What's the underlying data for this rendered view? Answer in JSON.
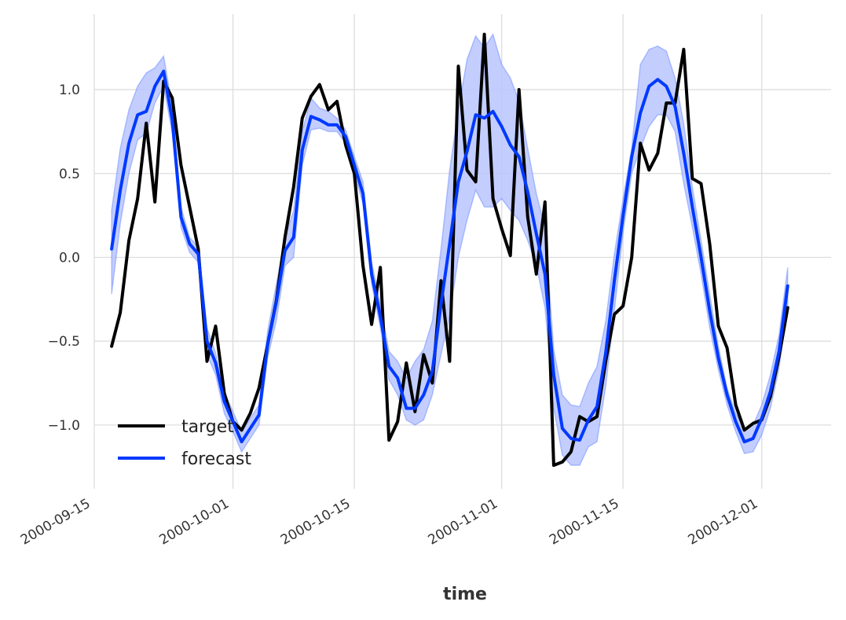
{
  "chart_data": {
    "type": "line",
    "title": "",
    "xlabel": "time",
    "ylabel": "",
    "x_axis_type": "date",
    "xlim": [
      "2000-09-15",
      "2000-12-09"
    ],
    "ylim": [
      -1.38,
      1.45
    ],
    "grid": true,
    "legend_position": "lower-left",
    "x_ticks": [
      "2000-09-15",
      "2000-10-01",
      "2000-10-15",
      "2000-11-01",
      "2000-11-15",
      "2000-12-01"
    ],
    "y_ticks": [
      {
        "value": 1.0,
        "label": "1.0"
      },
      {
        "value": 0.5,
        "label": "0.5"
      },
      {
        "value": 0.0,
        "label": "0.0"
      },
      {
        "value": -0.5,
        "label": "−0.5"
      },
      {
        "value": -1.0,
        "label": "−1.0"
      }
    ],
    "x": [
      "2000-09-17",
      "2000-09-18",
      "2000-09-19",
      "2000-09-20",
      "2000-09-21",
      "2000-09-22",
      "2000-09-23",
      "2000-09-24",
      "2000-09-25",
      "2000-09-26",
      "2000-09-27",
      "2000-09-28",
      "2000-09-29",
      "2000-09-30",
      "2000-10-01",
      "2000-10-02",
      "2000-10-03",
      "2000-10-04",
      "2000-10-05",
      "2000-10-06",
      "2000-10-07",
      "2000-10-08",
      "2000-10-09",
      "2000-10-10",
      "2000-10-11",
      "2000-10-12",
      "2000-10-13",
      "2000-10-14",
      "2000-10-15",
      "2000-10-16",
      "2000-10-17",
      "2000-10-18",
      "2000-10-19",
      "2000-10-20",
      "2000-10-21",
      "2000-10-22",
      "2000-10-23",
      "2000-10-24",
      "2000-10-25",
      "2000-10-26",
      "2000-10-27",
      "2000-10-28",
      "2000-10-29",
      "2000-10-30",
      "2000-10-31",
      "2000-11-01",
      "2000-11-02",
      "2000-11-03",
      "2000-11-04",
      "2000-11-05",
      "2000-11-06",
      "2000-11-07",
      "2000-11-08",
      "2000-11-09",
      "2000-11-10",
      "2000-11-11",
      "2000-11-12",
      "2000-11-13",
      "2000-11-14",
      "2000-11-15",
      "2000-11-16",
      "2000-11-17",
      "2000-11-18",
      "2000-11-19",
      "2000-11-20",
      "2000-11-21",
      "2000-11-22",
      "2000-11-23",
      "2000-11-24",
      "2000-11-25",
      "2000-11-26",
      "2000-11-27",
      "2000-11-28",
      "2000-11-29",
      "2000-11-30",
      "2000-12-01",
      "2000-12-02",
      "2000-12-03",
      "2000-12-04"
    ],
    "series": [
      {
        "name": "target",
        "color": "#000000",
        "values": [
          -0.53,
          -0.33,
          0.1,
          0.35,
          0.8,
          0.33,
          1.05,
          0.95,
          0.55,
          0.3,
          0.05,
          -0.62,
          -0.41,
          -0.81,
          -0.98,
          -1.03,
          -0.93,
          -0.78,
          -0.52,
          -0.26,
          0.12,
          0.42,
          0.83,
          0.96,
          1.03,
          0.88,
          0.93,
          0.67,
          0.5,
          -0.05,
          -0.4,
          -0.06,
          -1.09,
          -0.98,
          -0.63,
          -0.92,
          -0.58,
          -0.75,
          -0.14,
          -0.62,
          1.14,
          0.52,
          0.45,
          1.33,
          0.35,
          0.17,
          0.01,
          1.0,
          0.24,
          -0.1,
          0.33,
          -1.24,
          -1.22,
          -1.16,
          -0.95,
          -0.98,
          -0.95,
          -0.62,
          -0.34,
          -0.29,
          0.0,
          0.68,
          0.52,
          0.62,
          0.92,
          0.92,
          1.24,
          0.47,
          0.44,
          0.08,
          -0.41,
          -0.54,
          -0.88,
          -1.03,
          -0.99,
          -0.97,
          -0.83,
          -0.59,
          -0.3
        ]
      },
      {
        "name": "forecast",
        "color": "#0039FF",
        "band_color": "#B9C6FF",
        "values": [
          0.05,
          0.4,
          0.68,
          0.85,
          0.87,
          1.02,
          1.11,
          0.82,
          0.24,
          0.08,
          0.02,
          -0.5,
          -0.63,
          -0.86,
          -0.98,
          -1.1,
          -1.02,
          -0.94,
          -0.52,
          -0.27,
          0.04,
          0.12,
          0.64,
          0.84,
          0.82,
          0.79,
          0.79,
          0.72,
          0.55,
          0.38,
          -0.1,
          -0.35,
          -0.65,
          -0.72,
          -0.9,
          -0.9,
          -0.82,
          -0.68,
          -0.28,
          0.08,
          0.45,
          0.63,
          0.85,
          0.83,
          0.87,
          0.78,
          0.67,
          0.6,
          0.39,
          0.14,
          -0.1,
          -0.7,
          -1.02,
          -1.08,
          -1.09,
          -0.97,
          -0.89,
          -0.57,
          -0.14,
          0.25,
          0.6,
          0.86,
          1.02,
          1.06,
          1.02,
          0.9,
          0.62,
          0.3,
          0.0,
          -0.32,
          -0.6,
          -0.82,
          -0.98,
          -1.1,
          -1.08,
          -0.96,
          -0.8,
          -0.56,
          -0.17
        ],
        "upper": [
          0.28,
          0.65,
          0.88,
          1.02,
          1.1,
          1.13,
          1.2,
          0.9,
          0.3,
          0.12,
          0.06,
          -0.42,
          -0.57,
          -0.8,
          -0.92,
          -1.04,
          -0.96,
          -0.88,
          -0.44,
          -0.16,
          0.12,
          0.28,
          0.75,
          0.95,
          0.89,
          0.87,
          0.83,
          0.76,
          0.6,
          0.45,
          -0.03,
          -0.28,
          -0.56,
          -0.62,
          -0.72,
          -0.62,
          -0.55,
          -0.38,
          0.05,
          0.52,
          0.88,
          1.18,
          1.32,
          1.25,
          1.33,
          1.15,
          1.07,
          0.93,
          0.65,
          0.38,
          0.18,
          -0.55,
          -0.82,
          -0.88,
          -0.89,
          -0.75,
          -0.65,
          -0.38,
          0.02,
          0.35,
          0.65,
          1.15,
          1.24,
          1.26,
          1.23,
          1.07,
          0.8,
          0.42,
          0.1,
          -0.22,
          -0.53,
          -0.78,
          -0.93,
          -1.02,
          -1.0,
          -0.88,
          -0.7,
          -0.46,
          -0.06
        ],
        "lower": [
          -0.22,
          0.2,
          0.5,
          0.7,
          0.74,
          0.92,
          1.02,
          0.74,
          0.18,
          0.03,
          -0.03,
          -0.58,
          -0.7,
          -0.93,
          -1.04,
          -1.16,
          -1.08,
          -1.0,
          -0.6,
          -0.38,
          -0.05,
          0.0,
          0.55,
          0.76,
          0.77,
          0.75,
          0.75,
          0.68,
          0.5,
          0.32,
          -0.16,
          -0.42,
          -0.73,
          -0.82,
          -0.97,
          -1.0,
          -0.97,
          -0.82,
          -0.58,
          -0.35,
          0.0,
          0.22,
          0.4,
          0.3,
          0.3,
          0.35,
          0.28,
          0.22,
          0.1,
          -0.05,
          -0.3,
          -0.9,
          -1.18,
          -1.24,
          -1.24,
          -1.13,
          -1.1,
          -0.77,
          -0.32,
          0.15,
          0.5,
          0.65,
          0.78,
          0.85,
          0.85,
          0.75,
          0.44,
          0.18,
          -0.1,
          -0.42,
          -0.67,
          -0.88,
          -1.04,
          -1.17,
          -1.16,
          -1.06,
          -0.9,
          -0.66,
          -0.28
        ]
      }
    ]
  }
}
